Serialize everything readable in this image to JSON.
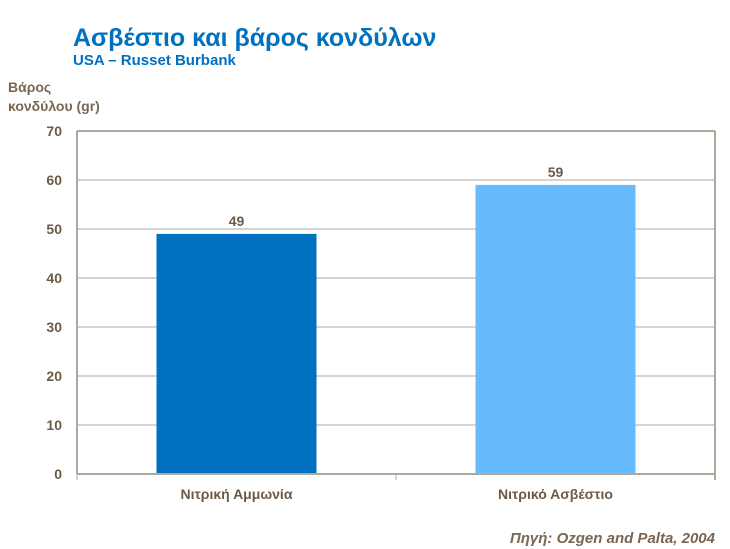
{
  "chart_data": {
    "type": "bar",
    "title": "Ασβέστιο και βάρος κονδύλων",
    "subtitle": "USA – Russet Burbank",
    "ylabel": "Βάρος κονδύλου (gr)",
    "xlabel": "",
    "categories": [
      "Νιτρική Αμμωνία",
      "Νιτρικό Ασβέστιο"
    ],
    "values": [
      49,
      59
    ],
    "data_labels": [
      "49",
      "59"
    ],
    "ylim": [
      0,
      70
    ],
    "yticks": [
      0,
      10,
      20,
      30,
      40,
      50,
      60,
      70
    ],
    "grid": true,
    "legend": "none",
    "colors": [
      "#0070c0",
      "#66bbff"
    ],
    "source": "Πηγή: Ozgen and Palta, 2004"
  }
}
